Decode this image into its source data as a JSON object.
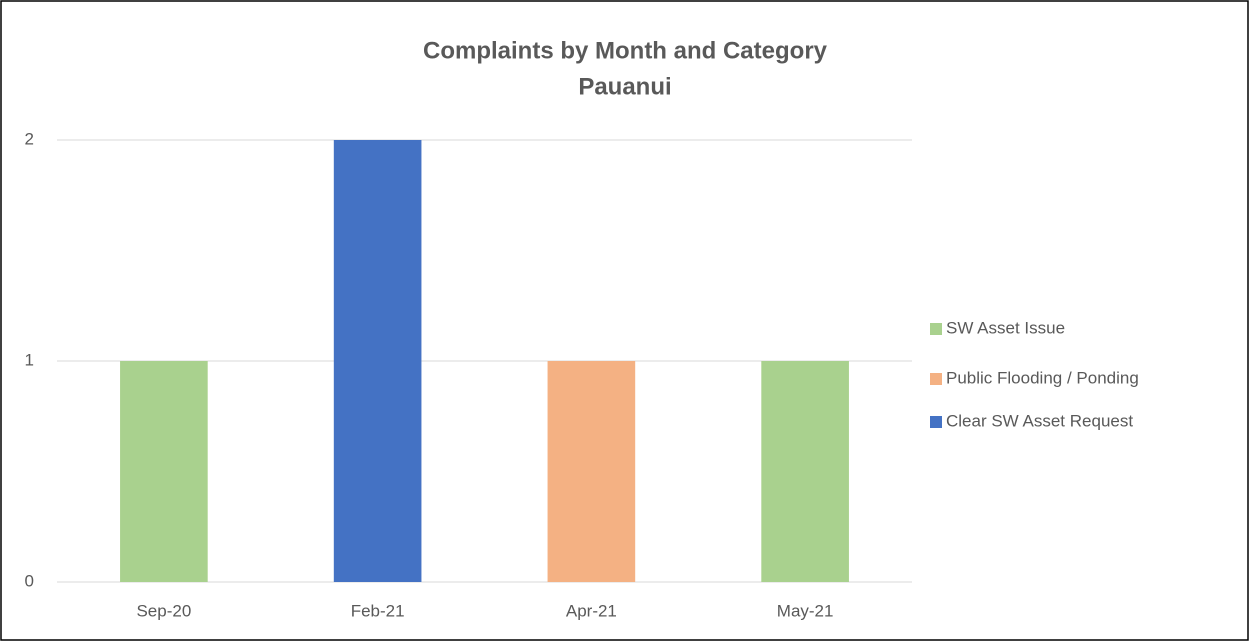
{
  "chart_data": {
    "type": "stacked_bar",
    "title": "Complaints by Month and Category",
    "subtitle": "Pauanui",
    "categories": [
      "Sep-20",
      "Feb-21",
      "Apr-21",
      "May-21"
    ],
    "series": [
      {
        "name": "SW Asset Issue",
        "color": "#a9d18e",
        "values": [
          1,
          0,
          0,
          1
        ]
      },
      {
        "name": "Public Flooding / Ponding",
        "color": "#f4b183",
        "values": [
          0,
          0,
          1,
          0
        ]
      },
      {
        "name": "Clear SW Asset Request",
        "color": "#4472c4",
        "values": [
          0,
          2,
          0,
          0
        ]
      }
    ],
    "ylim": [
      0,
      2
    ],
    "yticks": [
      0,
      1,
      2
    ],
    "grid": true,
    "legend": "right"
  }
}
